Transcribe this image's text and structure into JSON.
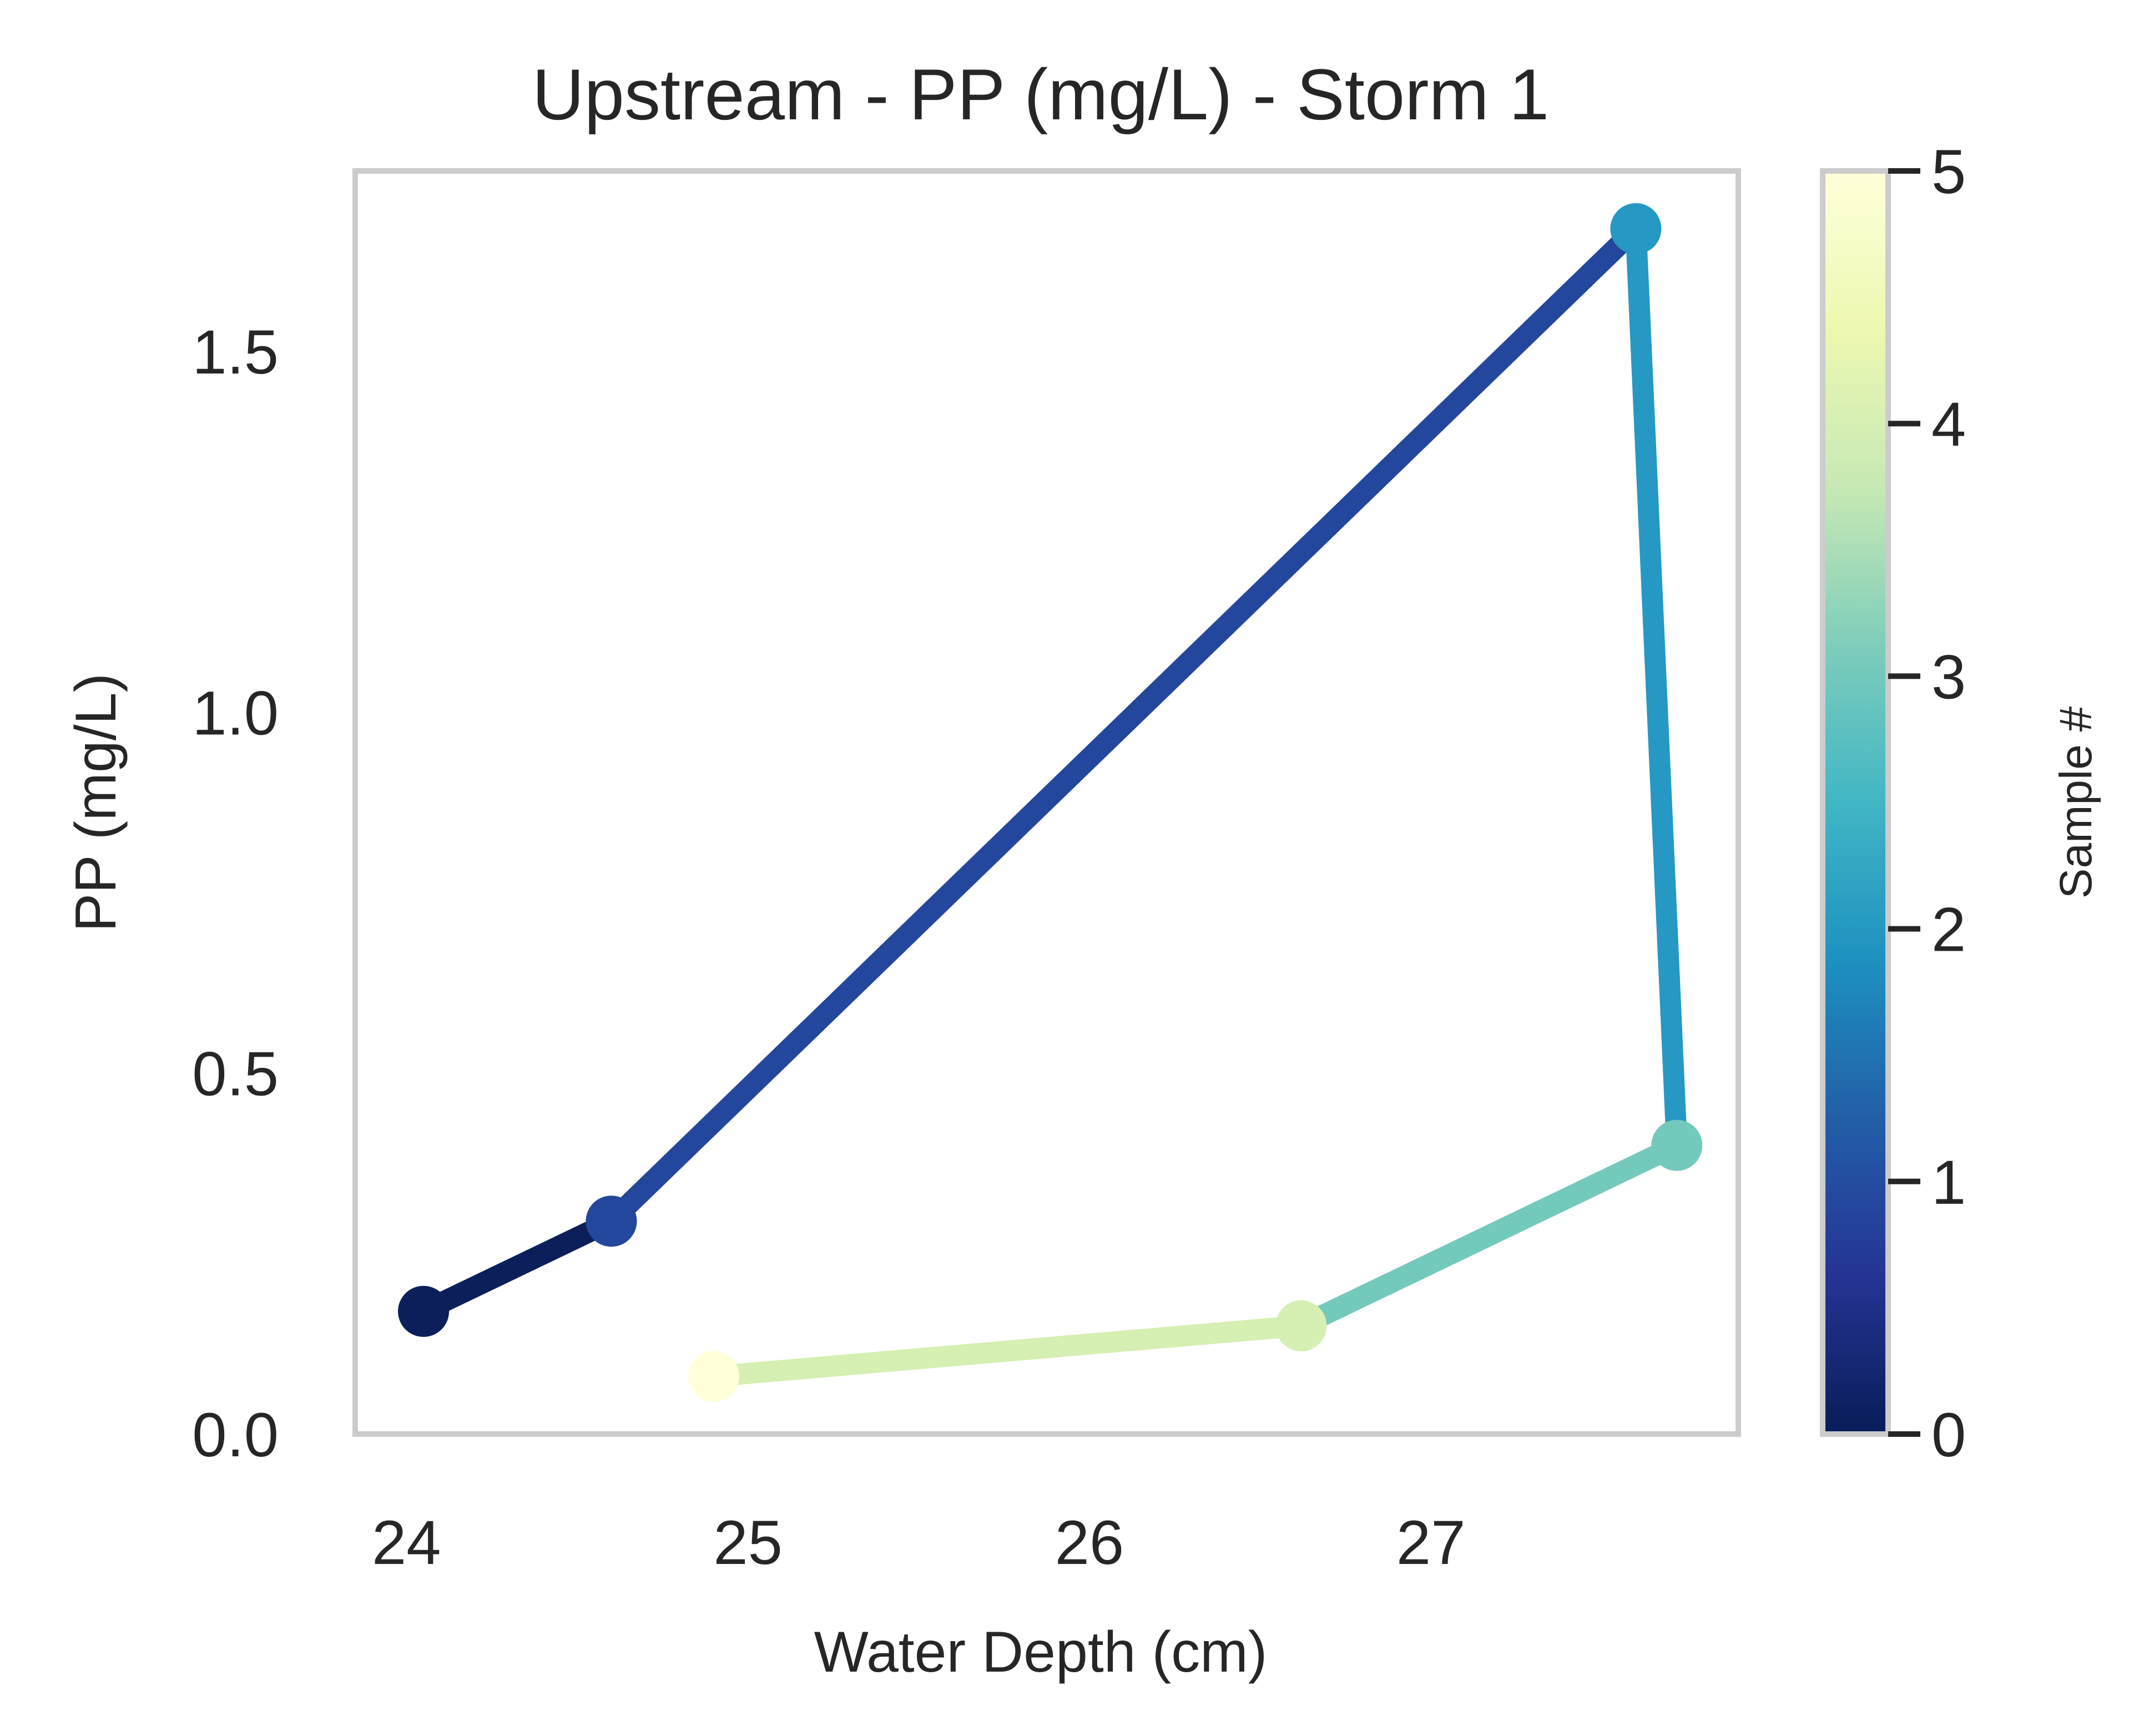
{
  "chart_data": {
    "type": "line",
    "title": "Upstream - PP (mg/L) - Storm 1",
    "xlabel": "Water Depth (cm)",
    "ylabel": "PP (mg/L)",
    "xlim": [
      23.85,
      27.9
    ],
    "ylim": [
      0.0,
      1.75
    ],
    "xticks": [
      24,
      25,
      26,
      27
    ],
    "xtick_labels": [
      "24",
      "25",
      "26",
      "27"
    ],
    "yticks": [
      0.0,
      0.5,
      1.0,
      1.5
    ],
    "ytick_labels": [
      "0.0",
      "0.5",
      "1.0",
      "1.5"
    ],
    "grid": false,
    "colormap": "YlGnBu_r",
    "points": [
      {
        "sample": 0,
        "x": 24.05,
        "y": 0.17
      },
      {
        "sample": 1,
        "x": 24.6,
        "y": 0.295
      },
      {
        "sample": 2,
        "x": 27.6,
        "y": 1.67
      },
      {
        "sample": 3,
        "x": 27.72,
        "y": 0.4
      },
      {
        "sample": 4,
        "x": 26.62,
        "y": 0.15
      },
      {
        "sample": 5,
        "x": 24.9,
        "y": 0.08
      }
    ],
    "colorbar": {
      "label": "Sample #",
      "range": [
        0,
        5
      ],
      "ticks": [
        0,
        1,
        2,
        3,
        4,
        5
      ],
      "tick_labels": [
        "0",
        "1",
        "2",
        "3",
        "4",
        "5"
      ],
      "gradient_stops": [
        "#081d58",
        "#253494",
        "#225ea8",
        "#1d91c0",
        "#41b6c4",
        "#7fcdbb",
        "#c7e9b4",
        "#edf8b1",
        "#ffffd9"
      ]
    },
    "segment_colors": [
      "#0c1f5a",
      "#23479c",
      "#2598c4",
      "#73c9bc",
      "#d6efb3"
    ],
    "point_colors": [
      "#0c1f5a",
      "#23479c",
      "#2598c4",
      "#73c9bc",
      "#d6efb3",
      "#ffffd9"
    ],
    "frame_color": "#cccccc"
  }
}
